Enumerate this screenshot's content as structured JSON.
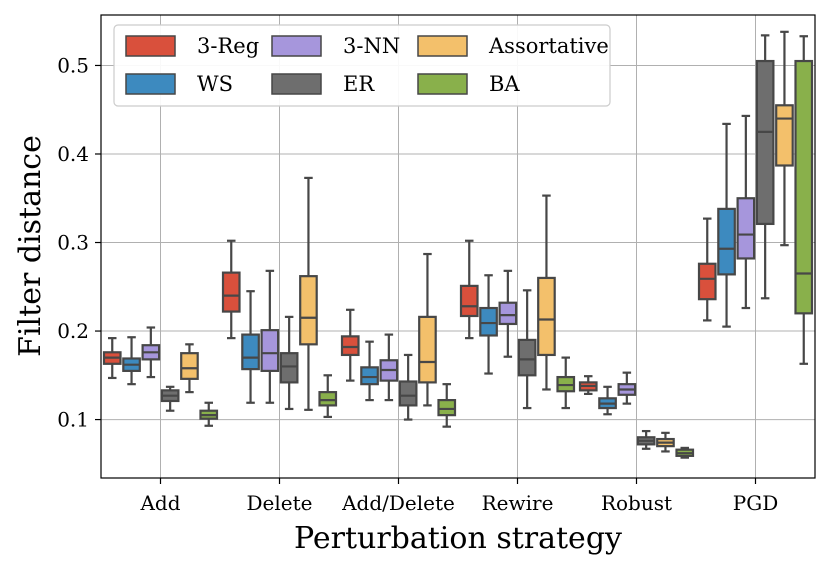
{
  "chart_data": {
    "type": "box",
    "title": "",
    "xlabel": "Perturbation strategy",
    "ylabel": "Filter distance",
    "ylim": [
      0.034,
      0.557
    ],
    "yticks": [
      0.1,
      0.2,
      0.3,
      0.4,
      0.5
    ],
    "ytick_labels": [
      "0.1",
      "0.2",
      "0.3",
      "0.4",
      "0.5"
    ],
    "grid": true,
    "legend_position": "top-left",
    "categories": [
      "Add",
      "Delete",
      "Add/Delete",
      "Rewire",
      "Robust",
      "PGD"
    ],
    "series": [
      {
        "name": "3-Reg",
        "color": "#d9503c",
        "boxes": [
          {
            "min": 0.147,
            "q1": 0.163,
            "median": 0.17,
            "q3": 0.176,
            "max": 0.192
          },
          {
            "min": 0.192,
            "q1": 0.222,
            "median": 0.24,
            "q3": 0.266,
            "max": 0.302
          },
          {
            "min": 0.144,
            "q1": 0.173,
            "median": 0.182,
            "q3": 0.194,
            "max": 0.224
          },
          {
            "min": 0.192,
            "q1": 0.217,
            "median": 0.228,
            "q3": 0.251,
            "max": 0.302
          },
          {
            "min": 0.129,
            "q1": 0.133,
            "median": 0.138,
            "q3": 0.142,
            "max": 0.149
          },
          {
            "min": 0.212,
            "q1": 0.236,
            "median": 0.259,
            "q3": 0.276,
            "max": 0.327
          }
        ]
      },
      {
        "name": "WS",
        "color": "#3d8abf",
        "boxes": [
          {
            "min": 0.14,
            "q1": 0.155,
            "median": 0.162,
            "q3": 0.169,
            "max": 0.193
          },
          {
            "min": 0.119,
            "q1": 0.157,
            "median": 0.17,
            "q3": 0.196,
            "max": 0.245
          },
          {
            "min": 0.122,
            "q1": 0.14,
            "median": 0.148,
            "q3": 0.159,
            "max": 0.188
          },
          {
            "min": 0.152,
            "q1": 0.195,
            "median": 0.209,
            "q3": 0.226,
            "max": 0.263
          },
          {
            "min": 0.106,
            "q1": 0.113,
            "median": 0.118,
            "q3": 0.124,
            "max": 0.137
          },
          {
            "min": 0.205,
            "q1": 0.264,
            "median": 0.293,
            "q3": 0.338,
            "max": 0.434
          }
        ]
      },
      {
        "name": "3-NN",
        "color": "#a696dc",
        "boxes": [
          {
            "min": 0.148,
            "q1": 0.168,
            "median": 0.176,
            "q3": 0.184,
            "max": 0.204
          },
          {
            "min": 0.119,
            "q1": 0.155,
            "median": 0.175,
            "q3": 0.201,
            "max": 0.268
          },
          {
            "min": 0.122,
            "q1": 0.144,
            "median": 0.156,
            "q3": 0.167,
            "max": 0.196
          },
          {
            "min": 0.171,
            "q1": 0.208,
            "median": 0.218,
            "q3": 0.232,
            "max": 0.268
          },
          {
            "min": 0.118,
            "q1": 0.128,
            "median": 0.134,
            "q3": 0.14,
            "max": 0.153
          },
          {
            "min": 0.226,
            "q1": 0.282,
            "median": 0.309,
            "q3": 0.35,
            "max": 0.443
          }
        ]
      },
      {
        "name": "ER",
        "color": "#6e6e6e",
        "boxes": [
          {
            "min": 0.11,
            "q1": 0.121,
            "median": 0.127,
            "q3": 0.133,
            "max": 0.137
          },
          {
            "min": 0.112,
            "q1": 0.142,
            "median": 0.16,
            "q3": 0.175,
            "max": 0.216
          },
          {
            "min": 0.1,
            "q1": 0.116,
            "median": 0.127,
            "q3": 0.143,
            "max": 0.173
          },
          {
            "min": 0.113,
            "q1": 0.15,
            "median": 0.168,
            "q3": 0.19,
            "max": 0.246
          },
          {
            "min": 0.067,
            "q1": 0.072,
            "median": 0.076,
            "q3": 0.08,
            "max": 0.087
          },
          {
            "min": 0.237,
            "q1": 0.321,
            "median": 0.425,
            "q3": 0.505,
            "max": 0.534
          }
        ]
      },
      {
        "name": "Assortative",
        "color": "#f3c06b",
        "boxes": [
          {
            "min": 0.131,
            "q1": 0.146,
            "median": 0.158,
            "q3": 0.175,
            "max": 0.185
          },
          {
            "min": 0.111,
            "q1": 0.185,
            "median": 0.215,
            "q3": 0.262,
            "max": 0.373
          },
          {
            "min": 0.116,
            "q1": 0.142,
            "median": 0.165,
            "q3": 0.216,
            "max": 0.287
          },
          {
            "min": 0.134,
            "q1": 0.173,
            "median": 0.213,
            "q3": 0.26,
            "max": 0.353
          },
          {
            "min": 0.064,
            "q1": 0.07,
            "median": 0.074,
            "q3": 0.078,
            "max": 0.085
          },
          {
            "min": 0.297,
            "q1": 0.387,
            "median": 0.44,
            "q3": 0.455,
            "max": 0.538
          }
        ]
      },
      {
        "name": "BA",
        "color": "#89b04b",
        "boxes": [
          {
            "min": 0.093,
            "q1": 0.101,
            "median": 0.105,
            "q3": 0.11,
            "max": 0.119
          },
          {
            "min": 0.103,
            "q1": 0.116,
            "median": 0.122,
            "q3": 0.131,
            "max": 0.15
          },
          {
            "min": 0.092,
            "q1": 0.105,
            "median": 0.112,
            "q3": 0.122,
            "max": 0.14
          },
          {
            "min": 0.113,
            "q1": 0.132,
            "median": 0.139,
            "q3": 0.148,
            "max": 0.17
          },
          {
            "min": 0.057,
            "q1": 0.059,
            "median": 0.062,
            "q3": 0.066,
            "max": 0.068
          },
          {
            "min": 0.163,
            "q1": 0.22,
            "median": 0.265,
            "q3": 0.505,
            "max": 0.533
          }
        ]
      }
    ]
  }
}
